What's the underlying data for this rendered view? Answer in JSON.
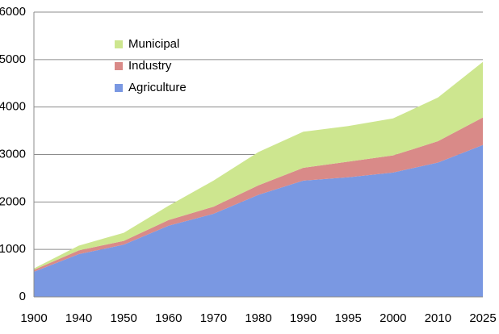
{
  "chart_data": {
    "type": "stacked_area",
    "categories": [
      "1900",
      "1940",
      "1950",
      "1960",
      "1970",
      "1980",
      "1990",
      "1995",
      "2000",
      "2010",
      "2025"
    ],
    "series": [
      {
        "name": "Agriculture",
        "color": "#7a98e2",
        "values": [
          530,
          900,
          1100,
          1500,
          1750,
          2150,
          2450,
          2520,
          2620,
          2830,
          3200
        ]
      },
      {
        "name": "Industry",
        "color": "#d98a88",
        "values": [
          40,
          80,
          80,
          120,
          150,
          200,
          270,
          330,
          360,
          450,
          580
        ]
      },
      {
        "name": "Municipal",
        "color": "#cde68f",
        "values": [
          30,
          100,
          170,
          300,
          550,
          700,
          760,
          750,
          780,
          920,
          1170
        ]
      }
    ],
    "ylim": [
      0,
      6000
    ],
    "yticks": [
      0,
      1000,
      2000,
      3000,
      4000,
      5000,
      6000
    ],
    "grid": true,
    "legend": "upper left"
  }
}
